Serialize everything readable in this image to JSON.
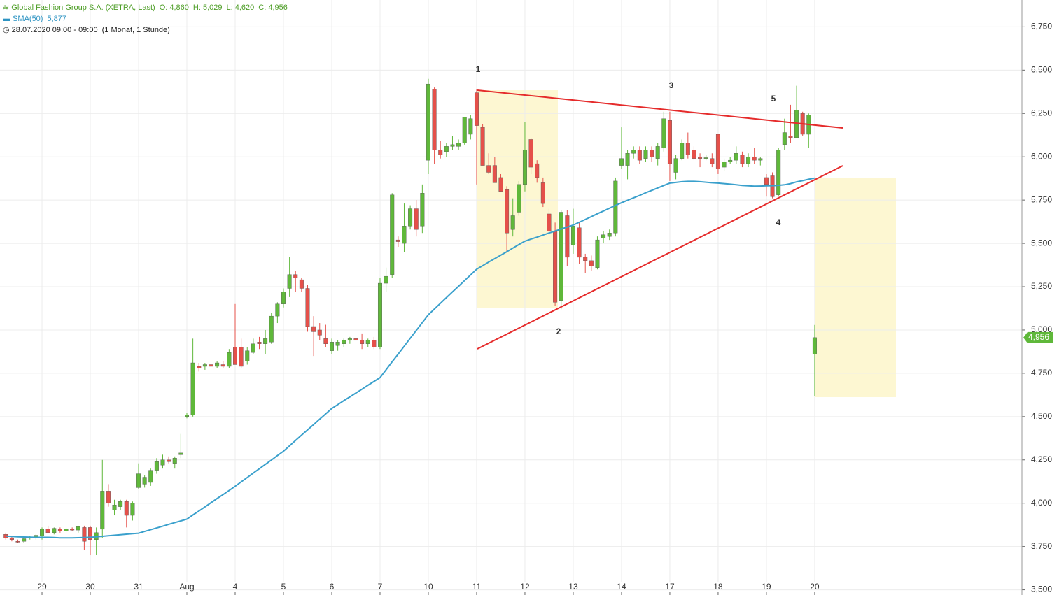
{
  "header": {
    "title": "Global Fashion Group S.A. (XETRA, Last)",
    "stats": [
      "O: 4,860",
      "H: 5,029",
      "L: 4,620",
      "C: 4,956"
    ],
    "indicator": "SMA(50)",
    "indicator_value": "5,877",
    "period": "28.07.2020 09:00 - 09:00",
    "interval": "(1 Monat, 1 Stunde)"
  },
  "annotations": [
    "1",
    "2",
    "3",
    "4",
    "5"
  ],
  "chart_data": {
    "type": "candlestick",
    "up_color": "#5fb83a",
    "down_color": "#e5504a",
    "grid": true,
    "xlim": [
      -0.96,
      168.33
    ],
    "ylim": [
      3470,
      6905
    ],
    "xticks": [
      {
        "value": 6,
        "label": "29"
      },
      {
        "value": 14,
        "label": "30"
      },
      {
        "value": 22,
        "label": "31"
      },
      {
        "value": 30,
        "label": "Aug"
      },
      {
        "value": 38,
        "label": "4"
      },
      {
        "value": 46,
        "label": "5"
      },
      {
        "value": 54,
        "label": "6"
      },
      {
        "value": 62,
        "label": "7"
      },
      {
        "value": 70,
        "label": "10"
      },
      {
        "value": 78,
        "label": "11"
      },
      {
        "value": 86,
        "label": "12"
      },
      {
        "value": 94,
        "label": "13"
      },
      {
        "value": 102,
        "label": "14"
      },
      {
        "value": 110,
        "label": "17"
      },
      {
        "value": 118,
        "label": "18"
      },
      {
        "value": 126,
        "label": "19"
      },
      {
        "value": 134,
        "label": "20"
      }
    ],
    "yticks": [
      {
        "value": 3500,
        "label": "3,500"
      },
      {
        "value": 3750,
        "label": "3,750"
      },
      {
        "value": 4000,
        "label": "4,000"
      },
      {
        "value": 4250,
        "label": "4,250"
      },
      {
        "value": 4500,
        "label": "4,500"
      },
      {
        "value": 4750,
        "label": "4,750"
      },
      {
        "value": 5000,
        "label": "5,000"
      },
      {
        "value": 5250,
        "label": "5,250"
      },
      {
        "value": 5500,
        "label": "5,500"
      },
      {
        "value": 5750,
        "label": "5,750"
      },
      {
        "value": 6000,
        "label": "6,000"
      },
      {
        "value": 6250,
        "label": "6,250"
      },
      {
        "value": 6500,
        "label": "6,500"
      },
      {
        "value": 6750,
        "label": "6,750"
      }
    ],
    "open": [
      3820,
      3800,
      3780,
      3780,
      3800,
      3800,
      3810,
      3850,
      3830,
      3850,
      3840,
      3850,
      3845,
      3860,
      3860,
      3790,
      3850,
      4070,
      3960,
      3980,
      4010,
      3930,
      4090,
      4110,
      4120,
      4190,
      4220,
      4250,
      4230,
      4280,
      4500,
      4510,
      4790,
      4790,
      4800,
      4790,
      4800,
      4790,
      4900,
      4900,
      4820,
      4870,
      4930,
      4920,
      4930,
      5080,
      5150,
      5240,
      5320,
      5290,
      5240,
      5020,
      5000,
      4950,
      4880,
      4910,
      4920,
      4940,
      4950,
      4940,
      4920,
      4940,
      4900,
      5270,
      5320,
      5520,
      5500,
      5600,
      5700,
      5600,
      5980,
      6390,
      6040,
      6030,
      6060,
      6060,
      6080,
      6130,
      6370,
      6170,
      5950,
      5950,
      5880,
      5810,
      5580,
      5680,
      5840,
      6100,
      5960,
      5850,
      5670,
      5570,
      5170,
      5660,
      5490,
      5590,
      5420,
      5400,
      5360,
      5530,
      5540,
      5560,
      5950,
      5950,
      6020,
      6040,
      5990,
      6040,
      5990,
      6050,
      6210,
      5910,
      5990,
      6080,
      6040,
      6000,
      5990,
      5990,
      6130,
      5940,
      5970,
      5980,
      6010,
      5960,
      6000,
      5980,
      5880,
      5890,
      5780,
      6070,
      6120,
      6110,
      6250,
      6130,
      4860
    ],
    "high": [
      3830,
      3810,
      3790,
      3800,
      3810,
      3820,
      3860,
      3870,
      3860,
      3860,
      3860,
      3860,
      3870,
      3870,
      3870,
      3860,
      4250,
      4110,
      4020,
      4020,
      4020,
      4010,
      4230,
      4160,
      4200,
      4260,
      4280,
      4270,
      4270,
      4400,
      4520,
      4950,
      4810,
      4810,
      4820,
      4820,
      4820,
      4890,
      5150,
      4950,
      4900,
      4950,
      4960,
      5000,
      5100,
      5160,
      5240,
      5420,
      5340,
      5300,
      5260,
      5080,
      5040,
      5030,
      4950,
      4940,
      4950,
      4960,
      4970,
      4980,
      4950,
      4960,
      5300,
      5360,
      5790,
      5540,
      5730,
      5720,
      5750,
      5840,
      6450,
      6400,
      6090,
      6080,
      6120,
      6100,
      6230,
      6240,
      6390,
      6190,
      6020,
      6000,
      5900,
      5830,
      5760,
      5860,
      6200,
      6110,
      5980,
      5880,
      5700,
      5620,
      5690,
      5690,
      5700,
      5620,
      5440,
      5430,
      5540,
      5570,
      5580,
      5880,
      6170,
      6040,
      6060,
      6060,
      6060,
      6060,
      6080,
      6260,
      6260,
      6010,
      6100,
      6140,
      6060,
      6020,
      6010,
      6020,
      6130,
      5990,
      6000,
      6060,
      6030,
      6020,
      6050,
      6000,
      5900,
      5910,
      6050,
      6220,
      6300,
      6410,
      6260,
      6250,
      5029
    ],
    "low": [
      3790,
      3780,
      3770,
      3770,
      3790,
      3790,
      3790,
      3830,
      3820,
      3830,
      3830,
      3840,
      3830,
      3730,
      3700,
      3700,
      3800,
      3980,
      3930,
      3960,
      3860,
      3900,
      4080,
      4090,
      4100,
      4170,
      4200,
      4230,
      4200,
      4260,
      4490,
      4500,
      4760,
      4770,
      4780,
      4780,
      4780,
      4780,
      4800,
      4780,
      4800,
      4860,
      4890,
      4860,
      4920,
      5040,
      5130,
      5190,
      5220,
      5220,
      4990,
      4850,
      4940,
      4900,
      4860,
      4880,
      4900,
      4920,
      4910,
      4890,
      4900,
      4890,
      4890,
      5220,
      5300,
      5480,
      5450,
      5580,
      5540,
      5560,
      5900,
      5960,
      5990,
      6000,
      6040,
      6040,
      6070,
      6100,
      5840,
      5950,
      5900,
      5850,
      5800,
      5450,
      5540,
      5660,
      5800,
      5900,
      5850,
      5710,
      5550,
      5140,
      5120,
      5370,
      5440,
      5380,
      5330,
      5340,
      5350,
      5500,
      5520,
      5540,
      5930,
      5870,
      5990,
      5960,
      5970,
      5970,
      5950,
      6030,
      5860,
      5870,
      5980,
      5990,
      5980,
      5940,
      5980,
      5940,
      5900,
      5920,
      5960,
      5960,
      5940,
      5940,
      5960,
      5950,
      5770,
      5760,
      5770,
      6040,
      6080,
      6110,
      6120,
      6050,
      4620
    ],
    "close": [
      3800,
      3790,
      3775,
      3795,
      3805,
      3815,
      3850,
      3830,
      3855,
      3840,
      3850,
      3845,
      3865,
      3780,
      3790,
      3830,
      4070,
      4000,
      3990,
      4010,
      3930,
      4000,
      4170,
      4150,
      4190,
      4240,
      4250,
      4240,
      4260,
      4290,
      4510,
      4810,
      4780,
      4800,
      4790,
      4810,
      4790,
      4870,
      4800,
      4790,
      4880,
      4920,
      4920,
      4950,
      5080,
      5150,
      5220,
      5320,
      5300,
      5240,
      5020,
      4990,
      4970,
      4920,
      4930,
      4930,
      4940,
      4950,
      4940,
      4920,
      4940,
      4900,
      5270,
      5310,
      5780,
      5510,
      5600,
      5700,
      5580,
      5790,
      6420,
      6040,
      6010,
      6060,
      6070,
      6080,
      6230,
      6220,
      6180,
      5950,
      5910,
      5850,
      5800,
      5560,
      5660,
      5840,
      6040,
      5940,
      5880,
      5730,
      5570,
      5160,
      5680,
      5420,
      5600,
      5420,
      5400,
      5370,
      5520,
      5550,
      5560,
      5860,
      5990,
      6020,
      6040,
      5980,
      6040,
      6000,
      6060,
      6220,
      5960,
      5990,
      6080,
      6010,
      5990,
      5990,
      5995,
      5960,
      5930,
      5970,
      5980,
      6020,
      5960,
      6000,
      5980,
      5990,
      5840,
      5770,
      6040,
      6140,
      6110,
      6270,
      6130,
      6240,
      4956
    ],
    "close_label": "4,956",
    "series": [
      {
        "name": "SMA(50)",
        "color": "#3aa0cc",
        "values": [
          3810,
          3808,
          3806,
          3805,
          3804,
          3803,
          3803,
          3803,
          3802,
          3800,
          3800,
          3800,
          3801,
          3802,
          3803,
          3806,
          3809,
          3812,
          3815,
          3818,
          3821,
          3824,
          3827,
          3837,
          3847,
          3857,
          3867,
          3878,
          3888,
          3898,
          3908,
          3932,
          3955,
          3979,
          4003,
          4027,
          4050,
          4074,
          4098,
          4123,
          4148,
          4174,
          4199,
          4224,
          4249,
          4275,
          4300,
          4331,
          4362,
          4393,
          4424,
          4454,
          4485,
          4516,
          4547,
          4569,
          4592,
          4614,
          4636,
          4658,
          4681,
          4703,
          4725,
          4770,
          4816,
          4861,
          4906,
          4952,
          4997,
          5043,
          5088,
          5121,
          5154,
          5187,
          5220,
          5252,
          5285,
          5318,
          5351,
          5371,
          5392,
          5412,
          5432,
          5452,
          5473,
          5493,
          5513,
          5525,
          5536,
          5548,
          5560,
          5571,
          5583,
          5594,
          5606,
          5622,
          5638,
          5654,
          5671,
          5687,
          5703,
          5719,
          5735,
          5749,
          5763,
          5777,
          5792,
          5806,
          5820,
          5834,
          5848,
          5852,
          5856,
          5858,
          5858,
          5856,
          5853,
          5850,
          5848,
          5845,
          5842,
          5838,
          5834,
          5832,
          5830,
          5831,
          5832,
          5833,
          5835,
          5838,
          5845,
          5855,
          5862,
          5870,
          5877
        ]
      }
    ]
  }
}
